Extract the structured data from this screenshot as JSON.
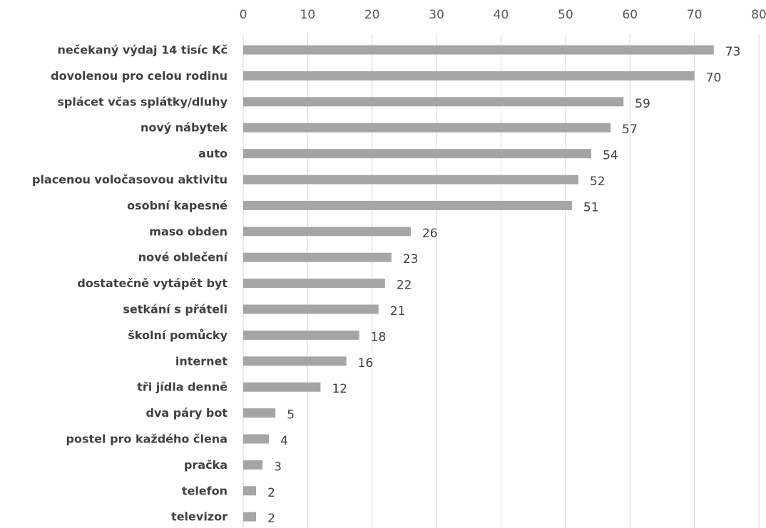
{
  "chart_data": {
    "type": "bar",
    "orientation": "horizontal",
    "title": "",
    "xlabel": "",
    "ylabel": "",
    "xlim": [
      0,
      80
    ],
    "x_ticks": [
      "0",
      "10",
      "20",
      "30",
      "40",
      "50",
      "60",
      "70",
      "80"
    ],
    "x_axis_position": "top",
    "grid": true,
    "legend": "none",
    "bar_color": "#a5a5a5",
    "categories": [
      "nečekaný výdaj 14 tisíc Kč",
      "dovolenou pro celou rodinu",
      "splácet včas splátky/dluhy",
      "nový nábytek",
      "auto",
      "placenou voločasovou aktivitu",
      "osobní kapesné",
      "maso obden",
      "nové oblečení",
      "dostatečně vytápět byt",
      "setkání s přáteli",
      "školní pomůcky",
      "internet",
      "tři jídla denně",
      "dva páry bot",
      "postel pro každého člena",
      "pračka",
      "telefon",
      "televizor"
    ],
    "values": [
      73,
      70,
      59,
      57,
      54,
      52,
      51,
      26,
      23,
      22,
      21,
      18,
      16,
      12,
      5,
      4,
      3,
      2,
      2
    ],
    "data_labels": [
      "73",
      "70",
      "59",
      "57",
      "54",
      "52",
      "51",
      "26",
      "23",
      "22",
      "21",
      "18",
      "16",
      "12",
      "5",
      "4",
      "3",
      "2",
      "2"
    ]
  }
}
